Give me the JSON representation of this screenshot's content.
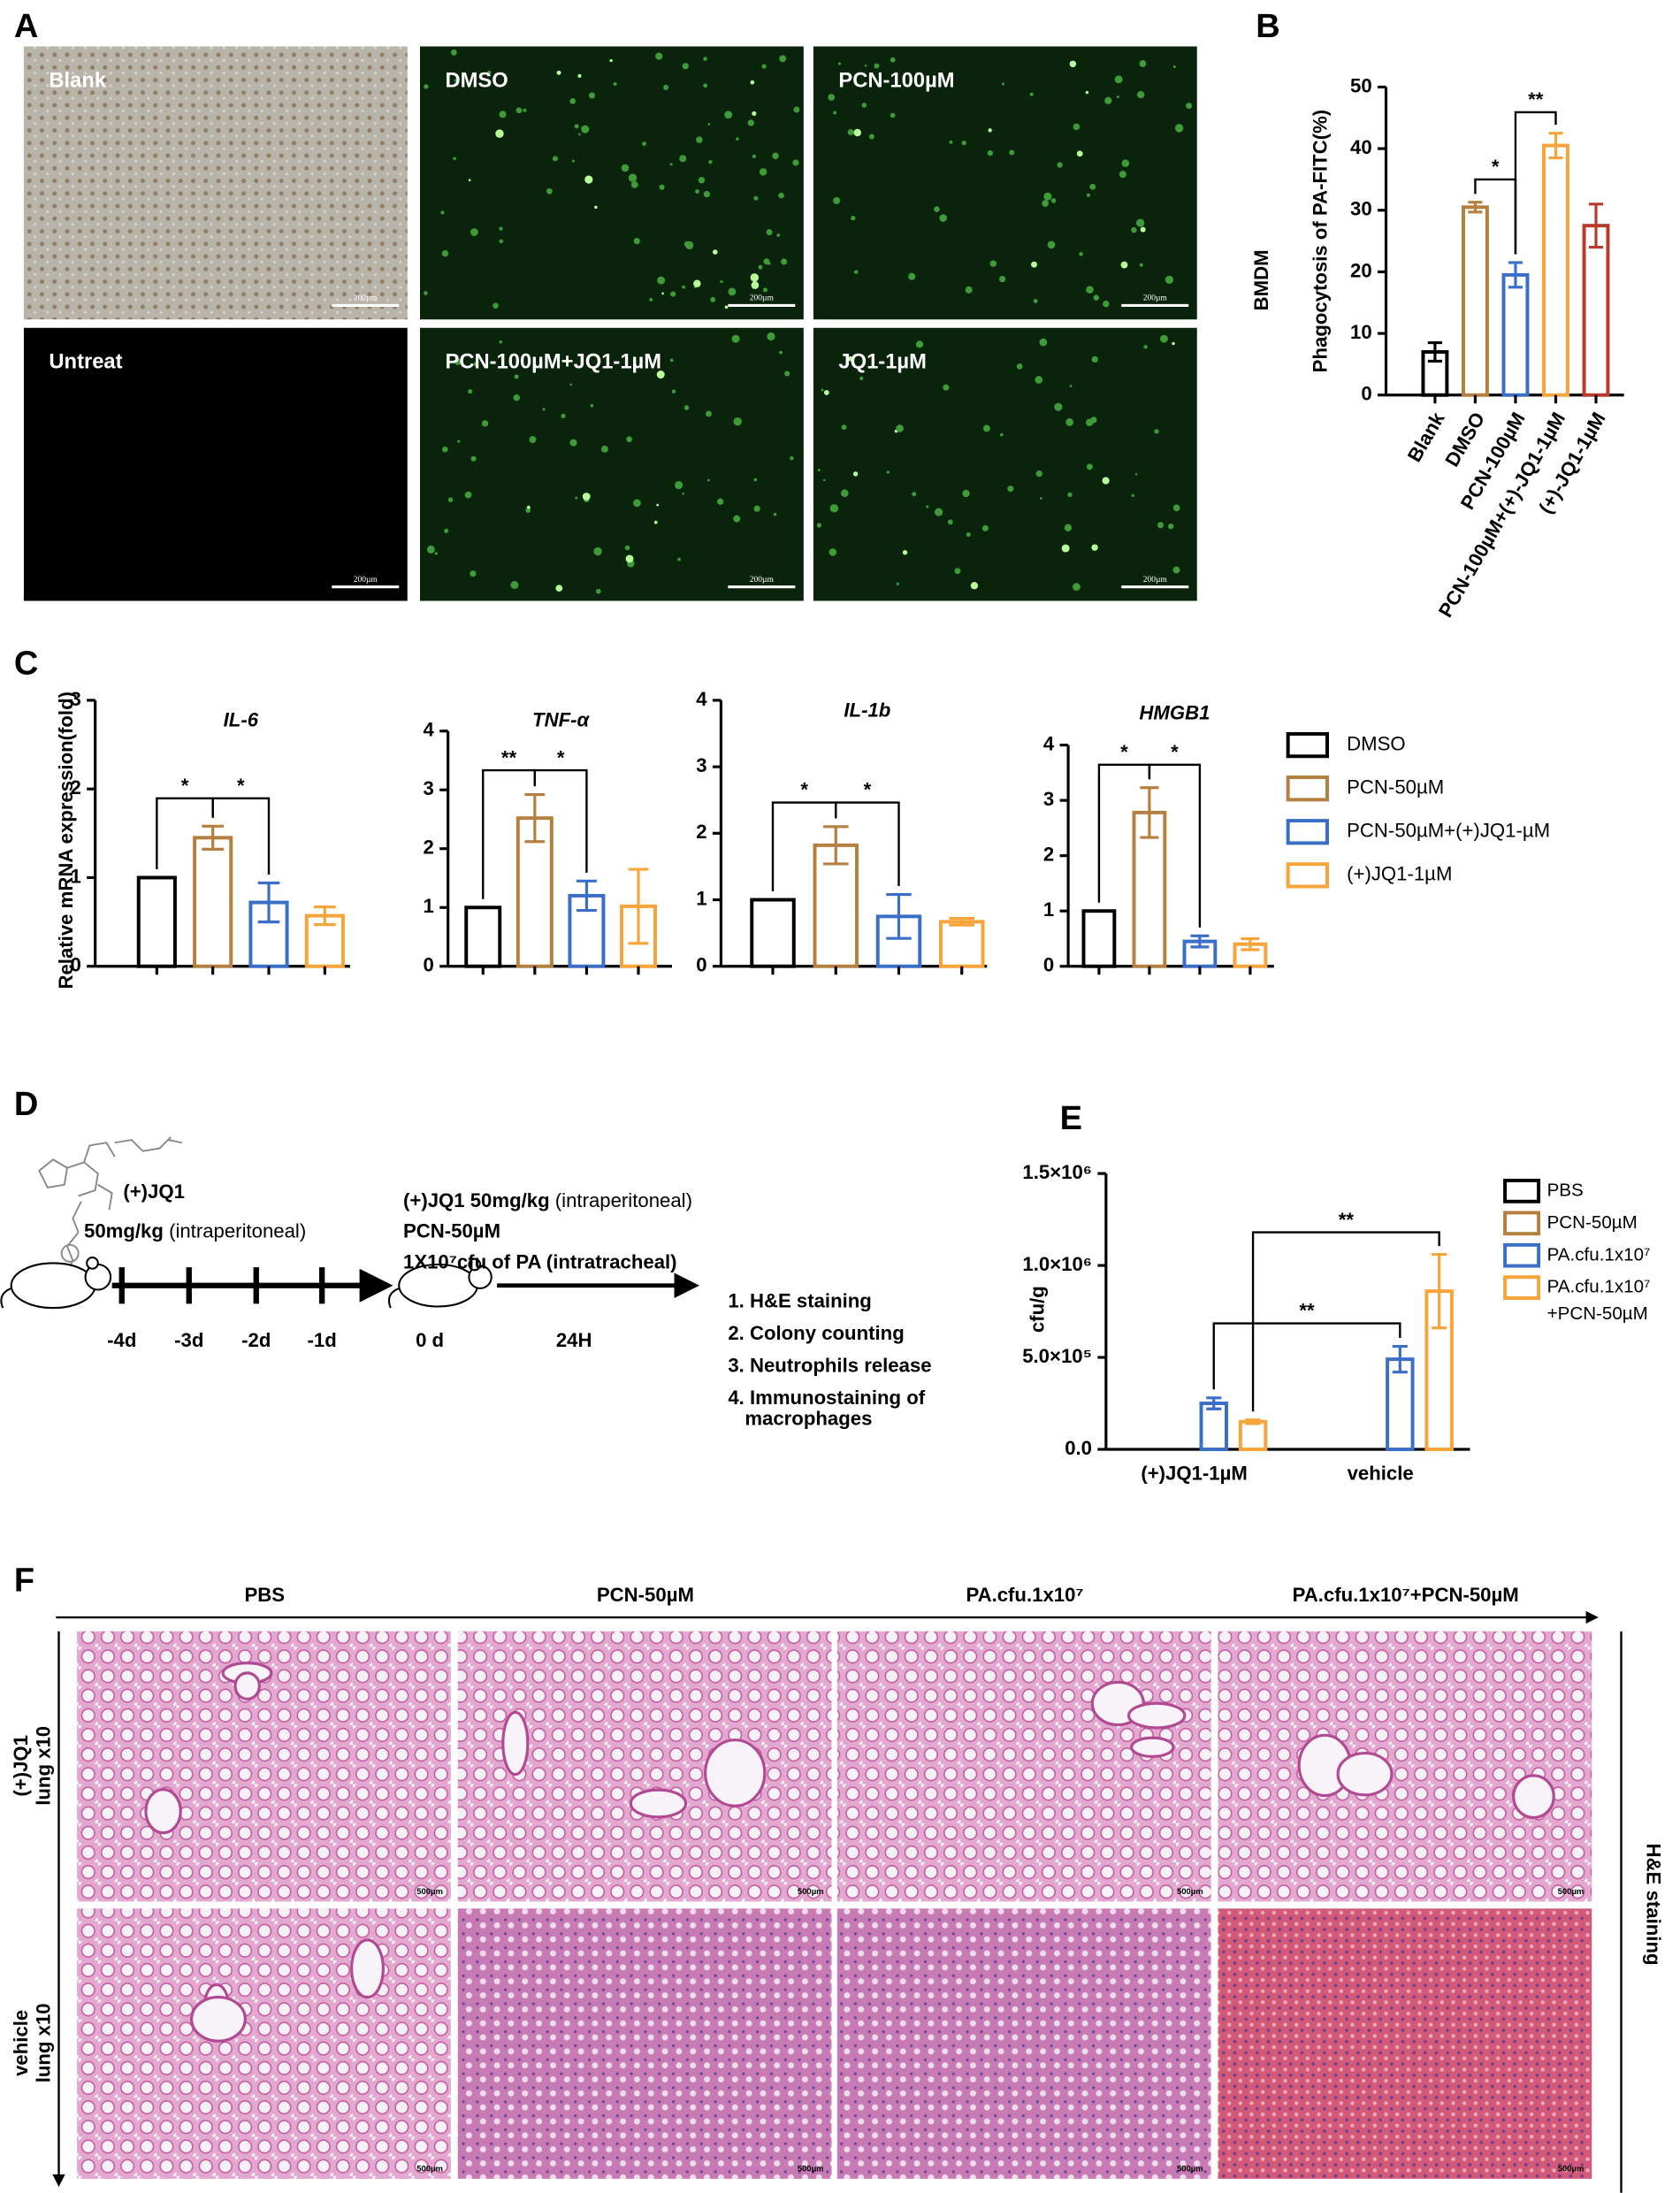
{
  "panel_letters": [
    "A",
    "B",
    "C",
    "D",
    "E",
    "F"
  ],
  "panel_a": {
    "scale_bar": "200µm",
    "images": [
      "Blank",
      "DMSO",
      "PCN-100µM",
      "Untreat",
      "PCN-100µM+JQ1-1µM",
      "JQ1-1µM"
    ]
  },
  "chart_data": [
    {
      "type": "bar",
      "side_label": "BMDM",
      "ylabel": "Phagocytosis of PA-FITC(%)",
      "categories": [
        "Blank",
        "DMSO",
        "PCN-100µM",
        "PCN-100µM+(+)-JQ1-1µM",
        "(+)-JQ1-1µM"
      ],
      "values": [
        7,
        30.5,
        19.5,
        40.5,
        27.5
      ],
      "errors": [
        1.5,
        0.8,
        2,
        2,
        3.5
      ],
      "colors": [
        "#000000",
        "#b5803f",
        "#3a6fc8",
        "#f7a43a",
        "#b83a2a"
      ],
      "ylim": [
        0,
        50
      ],
      "yticks": [
        0,
        10,
        20,
        30,
        40,
        50
      ],
      "annotations": [
        "*",
        "**"
      ]
    },
    {
      "type": "bar",
      "title": "IL-6",
      "ylabel": "Relative mRNA expression(fold)",
      "categories": [
        null,
        null,
        null,
        null
      ],
      "values": [
        1,
        1.45,
        0.72,
        0.57
      ],
      "errors": [
        0,
        0.13,
        0.22,
        0.1
      ],
      "ylim": [
        0,
        3
      ],
      "yticks": [
        0,
        1,
        2,
        3
      ],
      "annotations": [
        "*",
        "*"
      ]
    },
    {
      "type": "bar",
      "title": "TNF-α",
      "categories": [
        null,
        null,
        null,
        null
      ],
      "values": [
        1,
        2.52,
        1.2,
        1.02
      ],
      "errors": [
        0,
        0.4,
        0.25,
        0.63
      ],
      "ylim": [
        0,
        4
      ],
      "yticks": [
        0,
        1,
        2,
        3,
        4
      ],
      "annotations": [
        "**",
        "*"
      ]
    },
    {
      "type": "bar",
      "title": "IL-1b",
      "categories": [
        null,
        null,
        null,
        null
      ],
      "values": [
        1,
        1.82,
        0.75,
        0.67
      ],
      "errors": [
        0,
        0.28,
        0.33,
        0.05
      ],
      "ylim": [
        0,
        4
      ],
      "yticks": [
        0,
        1,
        2,
        3,
        4
      ],
      "annotations": [
        "*",
        "*"
      ]
    },
    {
      "type": "bar",
      "title": "HMGB1",
      "categories": [
        null,
        null,
        null,
        null
      ],
      "values": [
        1,
        2.78,
        0.45,
        0.4
      ],
      "errors": [
        0,
        0.45,
        0.1,
        0.1
      ],
      "ylim": [
        0,
        4
      ],
      "yticks": [
        0,
        1,
        2,
        3,
        4
      ],
      "annotations": [
        "*",
        "*"
      ]
    },
    {
      "type": "grouped-bar",
      "ylabel": "cfu/g",
      "categories": [
        "(+)JQ1-1µM",
        "vehicle"
      ],
      "series": [
        {
          "name": "PBS",
          "color": "#000000",
          "values": [
            0,
            0
          ]
        },
        {
          "name": "PCN-50µM",
          "color": "#b5803f",
          "values": [
            0,
            0
          ]
        },
        {
          "name": "PA.cfu.1x10⁷",
          "color": "#3a6fc8",
          "values": [
            250000,
            490000
          ],
          "errors": [
            30000,
            70000
          ]
        },
        {
          "name": "PA.cfu.1x10⁷\n+PCN-50µM",
          "color": "#f7a43a",
          "values": [
            150000,
            860000
          ],
          "errors": [
            10000,
            200000
          ]
        }
      ],
      "ylim": [
        0,
        1500000
      ],
      "yticks": [
        {
          "value": 0,
          "label": "0.0"
        },
        {
          "value": 500000,
          "label": "5.0×10⁵"
        },
        {
          "value": 1000000,
          "label": "1.0×10⁶"
        },
        {
          "value": 1500000,
          "label": "1.5×10⁶"
        }
      ],
      "annotations": [
        "**",
        "**"
      ]
    }
  ],
  "panel_c_legend": [
    {
      "name": "DMSO",
      "color": "#000000"
    },
    {
      "name": "PCN-50µM",
      "color": "#b5803f"
    },
    {
      "name": "PCN-50µM+(+)JQ1-µM",
      "color": "#3a6fc8"
    },
    {
      "name": "(+)JQ1-1µM",
      "color": "#f7a43a"
    }
  ],
  "panel_d": {
    "pretreatment": {
      "drug": "(+)JQ1",
      "dose": "50mg/kg",
      "route": "(intraperitoneal)"
    },
    "days": [
      "-4d",
      "-3d",
      "-2d",
      "-1d",
      "0 d"
    ],
    "duration": "24H",
    "treatment": {
      "drug": "(+)JQ1",
      "dose": "50mg/kg",
      "route": "(intraperitoneal)",
      "pcn": "PCN-50µM",
      "infection": "1X10⁷cfu of PA (intratracheal)"
    },
    "readouts": [
      "1. H&E staining",
      "2. Colony counting",
      "3. Neutrophils release",
      "4. Immunostaining of",
      "macrophages"
    ]
  },
  "panel_f": {
    "columns": [
      "PBS",
      "PCN-50µM",
      "PA.cfu.1x10⁷",
      "PA.cfu.1x10⁷+PCN-50µM"
    ],
    "rows": [
      [
        "(+)JQ1",
        "lung x10"
      ],
      [
        "vehicle",
        "lung x10"
      ]
    ],
    "side_label": "H&E staining",
    "scale_bar": "500µm"
  }
}
